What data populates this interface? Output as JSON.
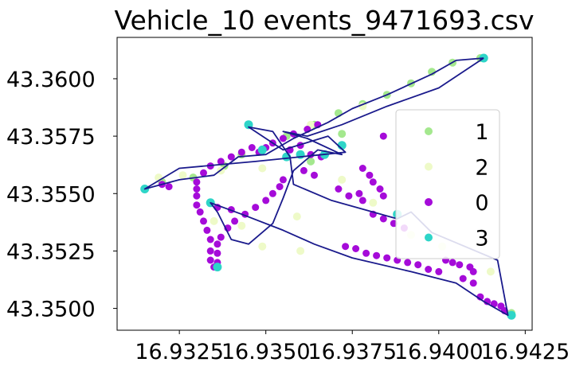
{
  "chart_data": {
    "type": "scatter",
    "title": "Vehicle_10 events_9471693.csv",
    "xlabel": "",
    "ylabel": "",
    "xlim": [
      16.9307,
      16.9427
    ],
    "ylim": [
      43.34905,
      43.3618
    ],
    "x_ticks": [
      "16.9325",
      "16.9350",
      "16.9375",
      "16.9400",
      "16.9425"
    ],
    "x_tick_values": [
      16.9325,
      16.935,
      16.9375,
      16.94,
      16.9425
    ],
    "y_ticks": [
      "43.3500",
      "43.3525",
      "43.3550",
      "43.3575",
      "43.3600"
    ],
    "y_tick_values": [
      43.35,
      43.3525,
      43.355,
      43.3575,
      43.36
    ],
    "grid": false,
    "legend_position": "center-right",
    "legend": [
      {
        "label": "1",
        "color": "#a4e88e"
      },
      {
        "label": "2",
        "color": "#eefac8"
      },
      {
        "label": "0",
        "color": "#a50bd9"
      },
      {
        "label": "3",
        "color": "#2ed5c8"
      }
    ],
    "track_color": "#1a1a8c",
    "track": [
      [
        16.9413,
        43.3609
      ],
      [
        16.9405,
        43.3608
      ],
      [
        16.9398,
        43.3602
      ],
      [
        16.9385,
        43.3593
      ],
      [
        16.9375,
        43.3587
      ],
      [
        16.9368,
        43.3581
      ],
      [
        16.9358,
        43.3574
      ],
      [
        16.935,
        43.3567
      ],
      [
        16.9342,
        43.3566
      ],
      [
        16.9335,
        43.3558
      ],
      [
        16.9325,
        43.3556
      ],
      [
        16.9315,
        43.3552
      ],
      [
        16.9325,
        43.3561
      ],
      [
        16.9347,
        43.3564
      ],
      [
        16.936,
        43.3566
      ],
      [
        16.9373,
        43.3568
      ],
      [
        16.9368,
        43.3575
      ],
      [
        16.9355,
        43.3569
      ],
      [
        16.9345,
        43.3579
      ],
      [
        16.9352,
        43.3577
      ],
      [
        16.9357,
        43.3566
      ],
      [
        16.9358,
        43.3554
      ],
      [
        16.9369,
        43.3547
      ],
      [
        16.9388,
        43.3539
      ],
      [
        16.9392,
        43.3542
      ],
      [
        16.9398,
        43.3533
      ],
      [
        16.9417,
        43.3521
      ],
      [
        16.942,
        43.3497
      ],
      [
        16.9413,
        43.3503
      ],
      [
        16.9405,
        43.3511
      ],
      [
        16.9392,
        43.3516
      ],
      [
        16.9375,
        43.3522
      ],
      [
        16.9364,
        43.3528
      ],
      [
        16.9355,
        43.3534
      ],
      [
        16.9343,
        43.3541
      ],
      [
        16.9334,
        43.3546
      ],
      [
        16.9336,
        43.3542
      ],
      [
        16.934,
        43.353
      ],
      [
        16.9345,
        43.3528
      ],
      [
        16.9352,
        43.3537
      ],
      [
        16.9355,
        43.3548
      ],
      [
        16.9358,
        43.356
      ],
      [
        16.9365,
        43.3569
      ],
      [
        16.9372,
        43.3567
      ],
      [
        16.9362,
        43.3574
      ],
      [
        16.9355,
        43.3577
      ],
      [
        16.9362,
        43.3575
      ],
      [
        16.9372,
        43.358
      ],
      [
        16.9385,
        43.3588
      ],
      [
        16.94,
        43.3596
      ],
      [
        16.9413,
        43.3609
      ]
    ],
    "series": [
      {
        "name": "1",
        "color": "#a4e88e",
        "points": [
          [
            16.9412,
            43.3609
          ],
          [
            16.9404,
            43.3607
          ],
          [
            16.9398,
            43.3603
          ],
          [
            16.9392,
            43.3598
          ],
          [
            16.9385,
            43.3593
          ],
          [
            16.9378,
            43.3589
          ],
          [
            16.9371,
            43.3585
          ],
          [
            16.9364,
            43.358
          ],
          [
            16.9356,
            43.3575
          ],
          [
            16.9349,
            43.3569
          ],
          [
            16.9343,
            43.3567
          ],
          [
            16.9338,
            43.3562
          ],
          [
            16.9329,
            43.3557
          ],
          [
            16.932,
            43.3555
          ],
          [
            16.9345,
            43.358
          ],
          [
            16.9372,
            43.3576
          ],
          [
            16.9363,
            43.3564
          ],
          [
            16.9421,
            43.3498
          ]
        ]
      },
      {
        "name": "2",
        "color": "#eefac8",
        "points": [
          [
            16.9378,
            43.3588
          ],
          [
            16.9363,
            43.358
          ],
          [
            16.9349,
            43.3561
          ],
          [
            16.9337,
            43.356
          ],
          [
            16.9326,
            43.3558
          ],
          [
            16.9319,
            43.3557
          ],
          [
            16.9381,
            43.3546
          ],
          [
            16.9392,
            43.3532
          ],
          [
            16.9401,
            43.3527
          ],
          [
            16.9415,
            43.3516
          ],
          [
            16.936,
            43.3525
          ],
          [
            16.9349,
            43.3527
          ],
          [
            16.9343,
            43.3536
          ],
          [
            16.9335,
            43.3538
          ],
          [
            16.9359,
            43.354
          ],
          [
            16.9372,
            43.3556
          ]
        ]
      },
      {
        "name": "0",
        "color": "#a50bd9",
        "points": [
          [
            16.9365,
            43.358
          ],
          [
            16.9362,
            43.3578
          ],
          [
            16.9358,
            43.3576
          ],
          [
            16.9355,
            43.3574
          ],
          [
            16.9352,
            43.3572
          ],
          [
            16.935,
            43.357
          ],
          [
            16.9348,
            43.3568
          ],
          [
            16.9346,
            43.357
          ],
          [
            16.9343,
            43.3568
          ],
          [
            16.934,
            43.3566
          ],
          [
            16.9337,
            43.3564
          ],
          [
            16.9334,
            43.3562
          ],
          [
            16.9332,
            43.3559
          ],
          [
            16.933,
            43.3555
          ],
          [
            16.933,
            43.3552
          ],
          [
            16.933,
            43.3549
          ],
          [
            16.933,
            43.3545
          ],
          [
            16.9331,
            43.3542
          ],
          [
            16.9332,
            43.3538
          ],
          [
            16.9333,
            43.3534
          ],
          [
            16.9334,
            43.353
          ],
          [
            16.9334,
            43.3525
          ],
          [
            16.9334,
            43.3521
          ],
          [
            16.9335,
            43.3518
          ],
          [
            16.9336,
            43.352
          ],
          [
            16.9336,
            43.3524
          ],
          [
            16.9336,
            43.3528
          ],
          [
            16.9337,
            43.3531
          ],
          [
            16.9339,
            43.3535
          ],
          [
            16.9341,
            43.3538
          ],
          [
            16.9344,
            43.3541
          ],
          [
            16.9347,
            43.3544
          ],
          [
            16.935,
            43.3547
          ],
          [
            16.9352,
            43.355
          ],
          [
            16.9354,
            43.3553
          ],
          [
            16.9355,
            43.3556
          ],
          [
            16.9336,
            43.3544
          ],
          [
            16.934,
            43.3543
          ],
          [
            16.9322,
            43.3553
          ],
          [
            16.932,
            43.3554
          ],
          [
            16.9357,
            43.3569
          ],
          [
            16.936,
            43.3571
          ],
          [
            16.9363,
            43.3567
          ],
          [
            16.9366,
            43.3566
          ],
          [
            16.9361,
            43.356
          ],
          [
            16.9364,
            43.3558
          ],
          [
            16.9378,
            43.3561
          ],
          [
            16.938,
            43.3558
          ],
          [
            16.9381,
            43.3555
          ],
          [
            16.9383,
            43.3552
          ],
          [
            16.9384,
            43.3549
          ],
          [
            16.9377,
            43.355
          ],
          [
            16.9378,
            43.3547
          ],
          [
            16.9374,
            43.3549
          ],
          [
            16.9371,
            43.3552
          ],
          [
            16.9381,
            43.3541
          ],
          [
            16.9384,
            43.3539
          ],
          [
            16.9387,
            43.3537
          ],
          [
            16.939,
            43.3535
          ],
          [
            16.9373,
            43.3527
          ],
          [
            16.9376,
            43.3526
          ],
          [
            16.9379,
            43.3524
          ],
          [
            16.9382,
            43.3523
          ],
          [
            16.9385,
            43.3522
          ],
          [
            16.9388,
            43.3521
          ],
          [
            16.9391,
            43.352
          ],
          [
            16.9394,
            43.3519
          ],
          [
            16.9397,
            43.3517
          ],
          [
            16.94,
            43.3516
          ],
          [
            16.9407,
            43.3513
          ],
          [
            16.941,
            43.3511
          ],
          [
            16.9402,
            43.3521
          ],
          [
            16.9404,
            43.352
          ],
          [
            16.9406,
            43.3519
          ],
          [
            16.9409,
            43.3518
          ],
          [
            16.941,
            43.3516
          ],
          [
            16.9412,
            43.3505
          ],
          [
            16.9414,
            43.3503
          ],
          [
            16.9416,
            43.3502
          ],
          [
            16.9418,
            43.3501
          ],
          [
            16.9419,
            43.3499
          ],
          [
            16.9384,
            43.3575
          ]
        ]
      },
      {
        "name": "3",
        "color": "#2ed5c8",
        "points": [
          [
            16.9413,
            43.3609
          ],
          [
            16.9345,
            43.358
          ],
          [
            16.9349,
            43.3569
          ],
          [
            16.936,
            43.3567
          ],
          [
            16.9367,
            43.3567
          ],
          [
            16.9372,
            43.3571
          ],
          [
            16.9315,
            43.3552
          ],
          [
            16.9334,
            43.3546
          ],
          [
            16.9336,
            43.3518
          ],
          [
            16.9388,
            43.3541
          ],
          [
            16.9421,
            43.3497
          ],
          [
            16.9356,
            43.3566
          ]
        ]
      }
    ]
  }
}
